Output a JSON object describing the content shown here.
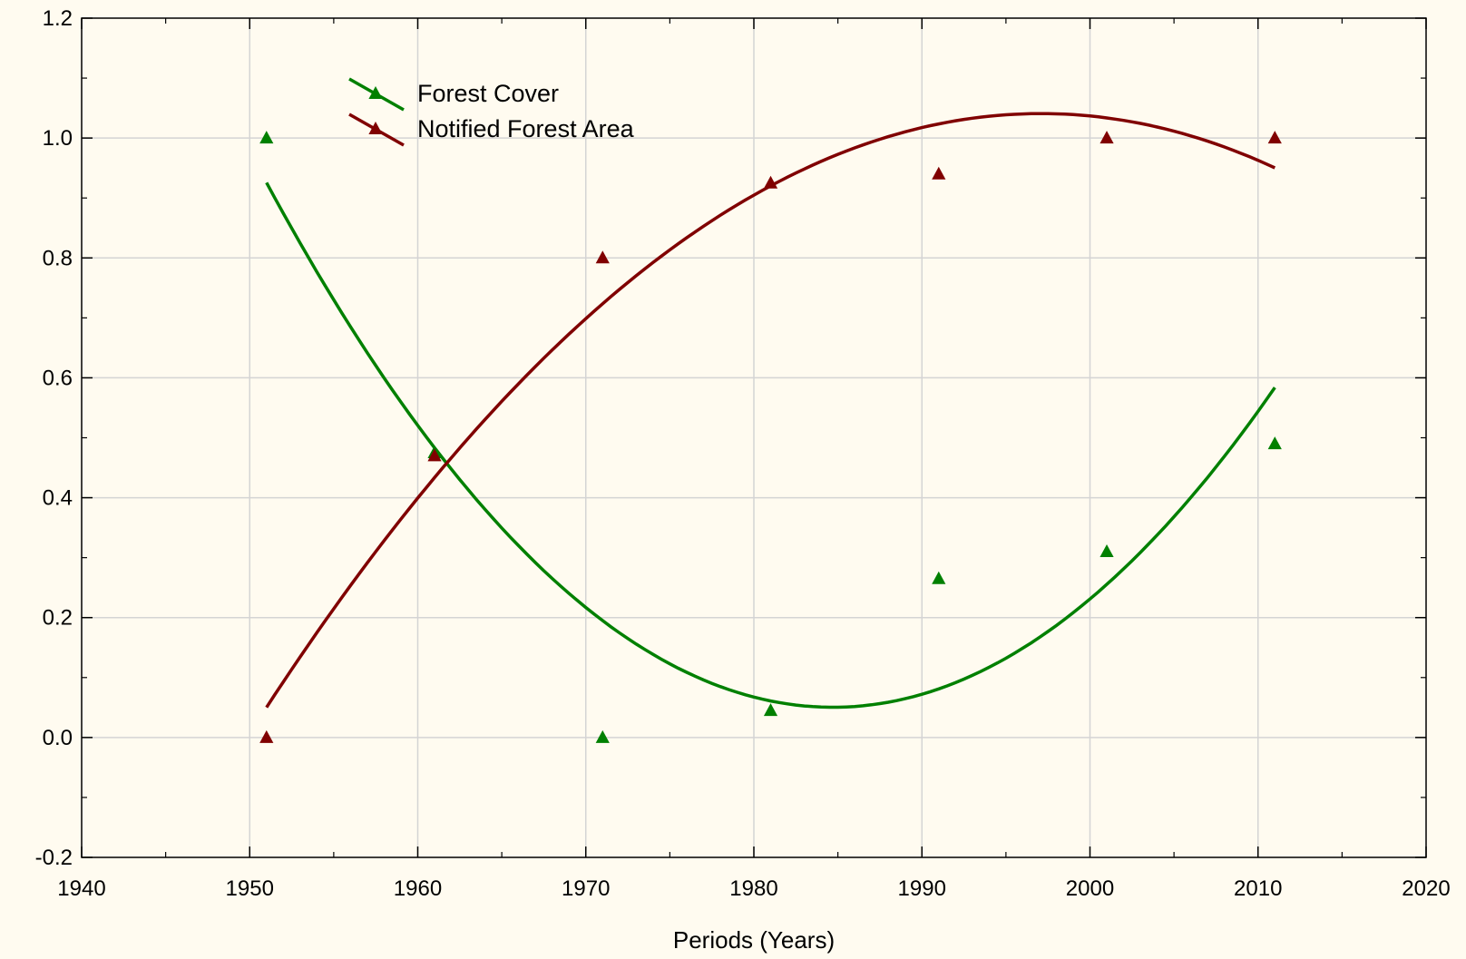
{
  "chart_data": {
    "type": "scatter",
    "title": "",
    "xlabel": "Periods (Years)",
    "ylabel": "",
    "xlim": [
      1940,
      2020
    ],
    "ylim": [
      -0.2,
      1.2
    ],
    "x_ticks": [
      1940,
      1950,
      1960,
      1970,
      1980,
      1990,
      2000,
      2010,
      2020
    ],
    "x_tick_labels": [
      "1940",
      "1950",
      "1960",
      "1970",
      "1980",
      "1990",
      "2000",
      "2010",
      "2020"
    ],
    "y_ticks": [
      -0.2,
      0.0,
      0.2,
      0.4,
      0.6,
      0.8,
      1.0,
      1.2
    ],
    "y_tick_labels": [
      "-0.2",
      "0.0",
      "0.2",
      "0.4",
      "0.6",
      "0.8",
      "1.0",
      "1.2"
    ],
    "grid": true,
    "legend_position": "top-left",
    "series": [
      {
        "name": "Forest Cover",
        "color": "#008000",
        "marker": "triangle",
        "fit": "quadratic",
        "x": [
          1951,
          1961,
          1971,
          1981,
          1991,
          2001,
          2011
        ],
        "y": [
          1.0,
          0.475,
          0.0,
          0.045,
          0.265,
          0.31,
          0.49
        ],
        "fit_x_range": [
          1951,
          2011
        ]
      },
      {
        "name": "Notified Forest Area",
        "color": "#800000",
        "marker": "triangle",
        "fit": "quadratic",
        "x": [
          1951,
          1961,
          1971,
          1981,
          1991,
          2001,
          2011
        ],
        "y": [
          0.0,
          0.47,
          0.8,
          0.925,
          0.94,
          1.0,
          1.0
        ],
        "fit_x_range": [
          1951,
          2011
        ]
      }
    ]
  }
}
